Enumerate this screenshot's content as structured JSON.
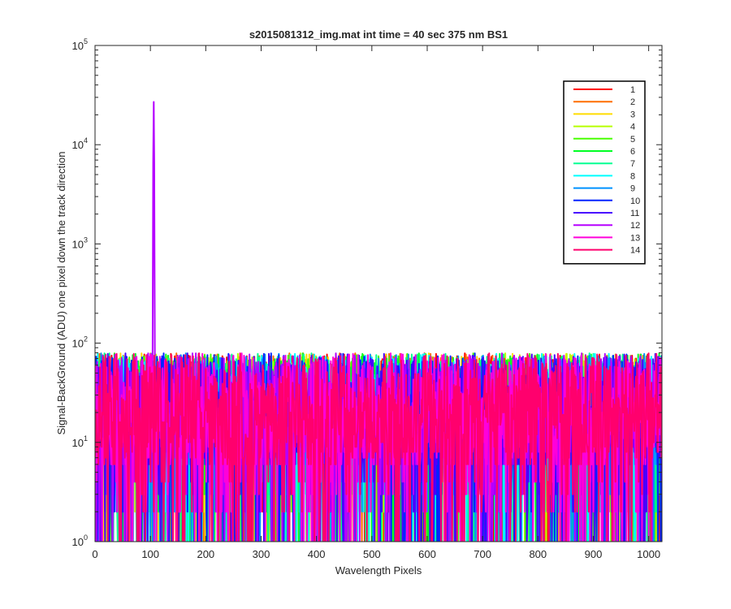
{
  "chart_data": {
    "type": "line",
    "title": "s2015081312_img.mat int time = 40 sec  375 nm BS1",
    "xlabel": "Wavelength Pixels",
    "ylabel": "Signal-BackGround (ADU) one pixel down the track direction",
    "xlim": [
      0,
      1024
    ],
    "ylim": [
      1,
      100000
    ],
    "yscale": "log",
    "x_ticks": [
      "0",
      "100",
      "200",
      "300",
      "400",
      "500",
      "600",
      "700",
      "800",
      "900",
      "1000"
    ],
    "y_ticks": [
      {
        "base": "10",
        "exp": "0"
      },
      {
        "base": "10",
        "exp": "1"
      },
      {
        "base": "10",
        "exp": "2"
      },
      {
        "base": "10",
        "exp": "3"
      },
      {
        "base": "10",
        "exp": "4"
      },
      {
        "base": "10",
        "exp": "5"
      }
    ],
    "grid": false,
    "legend_position": "top-right",
    "series": [
      {
        "name": "1",
        "color": "#ff0000"
      },
      {
        "name": "2",
        "color": "#ff6e00"
      },
      {
        "name": "3",
        "color": "#ffdc00"
      },
      {
        "name": "4",
        "color": "#b6ff00"
      },
      {
        "name": "5",
        "color": "#49ff00"
      },
      {
        "name": "6",
        "color": "#00ff24"
      },
      {
        "name": "7",
        "color": "#00ff92"
      },
      {
        "name": "8",
        "color": "#00ffff"
      },
      {
        "name": "9",
        "color": "#0092ff"
      },
      {
        "name": "10",
        "color": "#0024ff"
      },
      {
        "name": "11",
        "color": "#4900ff"
      },
      {
        "name": "12",
        "color": "#b600ff"
      },
      {
        "name": "13",
        "color": "#ff00db"
      },
      {
        "name": "14",
        "color": "#ff006d"
      }
    ],
    "noise_range": [
      1,
      90
    ],
    "annotations": [
      {
        "series": "12",
        "x": 106,
        "y": 27000,
        "note": "single spike"
      }
    ]
  }
}
